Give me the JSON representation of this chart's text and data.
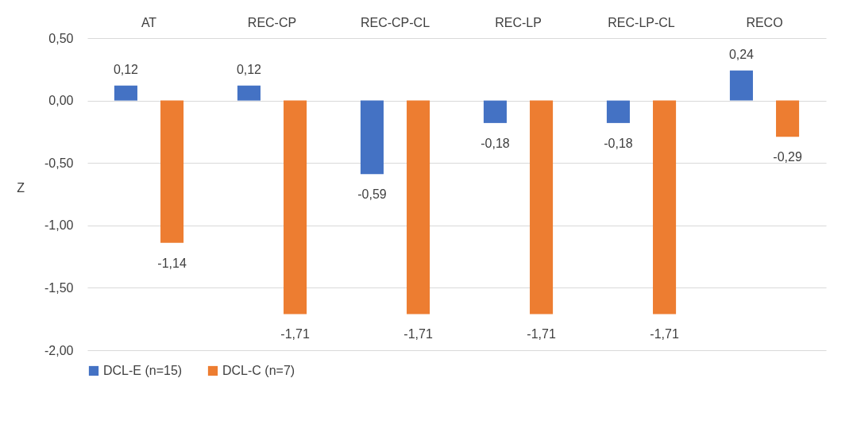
{
  "chart_data": {
    "type": "bar",
    "ylabel": "Z",
    "categories": [
      "AT",
      "REC-CP",
      "REC-CP-CL",
      "REC-LP",
      "REC-LP-CL",
      "RECO"
    ],
    "series": [
      {
        "name": "DCL-E (n=15)",
        "color": "#4472c4",
        "values": [
          0.12,
          0.12,
          -0.59,
          -0.18,
          -0.18,
          0.24
        ],
        "value_labels": [
          "0,12",
          "0,12",
          "-0,59",
          "-0,18",
          "-0,18",
          "0,24"
        ]
      },
      {
        "name": "DCL-C (n=7)",
        "color": "#ed7d31",
        "values": [
          -1.14,
          -1.71,
          -1.71,
          -1.71,
          -1.71,
          -0.29
        ],
        "value_labels": [
          "-1,14",
          "-1,71",
          "-1,71",
          "-1,71",
          "-1,71",
          "-0,29"
        ]
      }
    ],
    "ylim": [
      -2,
      0.5
    ],
    "yticks": [
      {
        "value": -2,
        "label": "-2,00"
      },
      {
        "value": -1.5,
        "label": "-1,50"
      },
      {
        "value": -1,
        "label": "-1,00"
      },
      {
        "value": -0.5,
        "label": "-0,50"
      },
      {
        "value": 0,
        "label": "0,00"
      },
      {
        "value": 0.5,
        "label": "0,50"
      }
    ],
    "grid": "y",
    "legend": "bottom"
  }
}
